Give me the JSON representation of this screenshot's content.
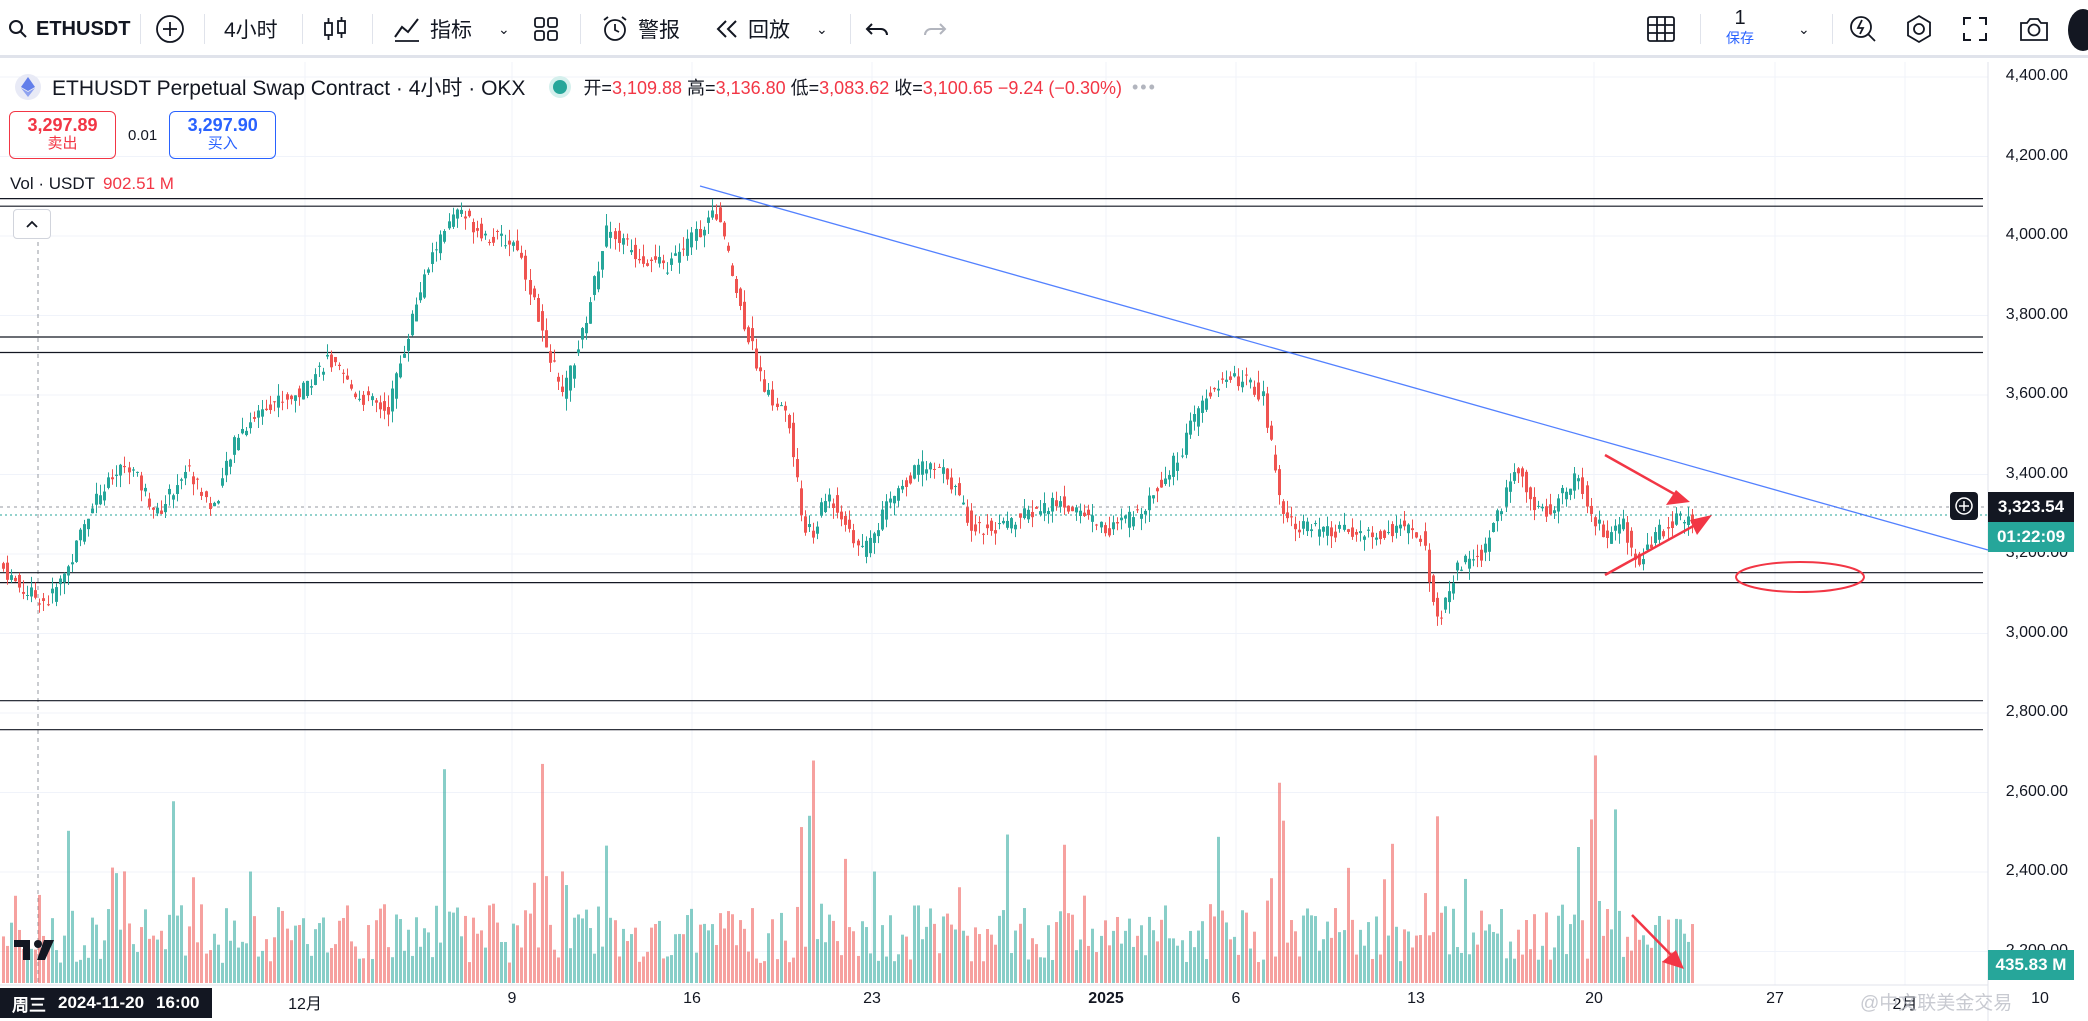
{
  "toolbar": {
    "symbol": "ETHUSDT",
    "interval": "4小时",
    "indicators": "指标",
    "alert": "警报",
    "replay": "回放",
    "layout_count": "1",
    "save_label": "保存"
  },
  "legend": {
    "title": "ETHUSDT Perpetual Swap Contract · 4小时 · OKX",
    "open_label": "开=",
    "open": "3,109.88",
    "high_label": "高=",
    "high": "3,136.80",
    "low_label": "低=",
    "low": "3,083.62",
    "close_label": "收=",
    "close": "3,100.65",
    "change": "−9.24 (−0.30%)"
  },
  "trade": {
    "sell_price": "3,297.89",
    "sell_label": "卖出",
    "spread": "0.01",
    "buy_price": "3,297.90",
    "buy_label": "买入"
  },
  "volume_legend": {
    "label": "Vol · USDT",
    "value": "902.51 M"
  },
  "price_axis": [
    "4,400.00",
    "4,200.00",
    "4,000.00",
    "3,800.00",
    "3,600.00",
    "3,400.00",
    "3,200.00",
    "3,000.00",
    "2,800.00",
    "2,600.00",
    "2,400.00",
    "2,200.00"
  ],
  "time_axis": [
    "12月",
    "9",
    "16",
    "23",
    "2025",
    "6",
    "13",
    "20",
    "27",
    "2月",
    "10"
  ],
  "current_price": "3,323.54",
  "countdown": "01:22:09",
  "volume_tag": "435.83 M",
  "crosshair_date": {
    "day": "周三",
    "date": "2024-11-20",
    "time": "16:00"
  },
  "colors": {
    "up": "#26a69a",
    "down": "#ef5350",
    "accent": "#2962ff",
    "annotation": "#f23645"
  },
  "watermark": "@中文联美金交易"
}
